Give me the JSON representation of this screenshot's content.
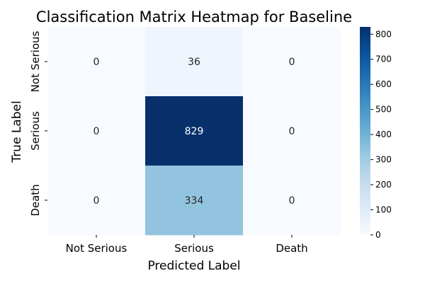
{
  "chart_data": {
    "type": "heatmap",
    "title": "Classification Matrix Heatmap for Baseline",
    "xlabel": "Predicted Label",
    "ylabel": "True Label",
    "x_categories": [
      "Not Serious",
      "Serious",
      "Death"
    ],
    "y_categories": [
      "Not Serious",
      "Serious",
      "Death"
    ],
    "values": [
      [
        0,
        36,
        0
      ],
      [
        0,
        829,
        0
      ],
      [
        0,
        334,
        0
      ]
    ],
    "colormap": "Blues",
    "colorbar": {
      "min": 0,
      "max": 829,
      "ticks": [
        0,
        100,
        200,
        300,
        400,
        500,
        600,
        700,
        800
      ]
    }
  }
}
